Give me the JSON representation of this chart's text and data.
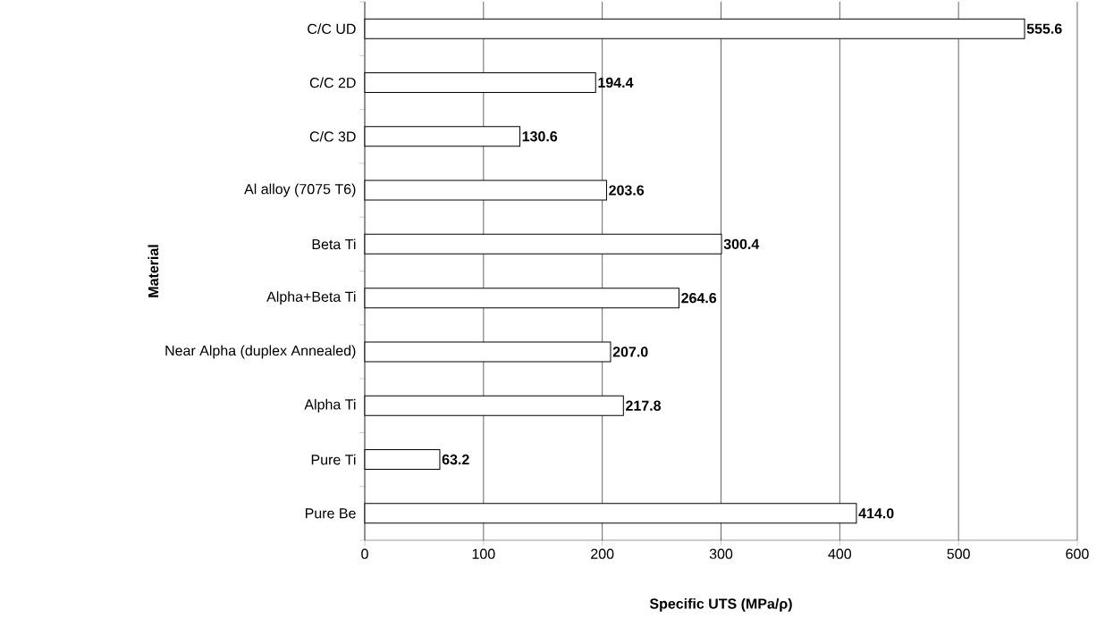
{
  "chart_data": {
    "type": "bar",
    "orientation": "horizontal",
    "xlabel": "Specific UTS (MPa/ρ)",
    "ylabel": "Material",
    "categories": [
      "C/C UD",
      "C/C 2D",
      "C/C 3D",
      "Al alloy (7075 T6)",
      "Beta Ti",
      "Alpha+Beta Ti",
      "Near Alpha (duplex Annealed)",
      "Alpha Ti",
      "Pure Ti",
      "Pure Be"
    ],
    "values": [
      555.6,
      194.4,
      130.6,
      203.6,
      300.4,
      264.6,
      207.0,
      217.8,
      63.2,
      414.0
    ],
    "value_labels": [
      "555.6",
      "194.4",
      "130.6",
      "203.6",
      "300.4",
      "264.6",
      "207.0",
      "217.8",
      "63.2",
      "414.0"
    ],
    "color": "#ffffff",
    "xlim": [
      0,
      600
    ],
    "xticks": [
      0,
      100,
      200,
      300,
      400,
      500,
      600
    ],
    "grid": "x"
  }
}
